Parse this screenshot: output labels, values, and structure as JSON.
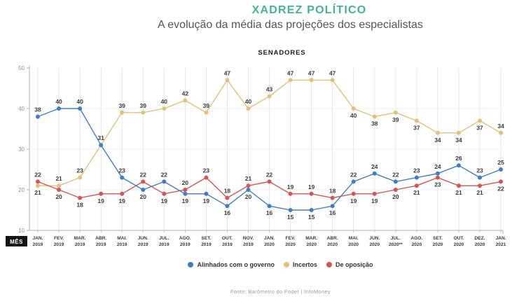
{
  "header": {
    "title": "XADREZ POLÍTICO",
    "subtitle": "A evolução da média das projeções dos especialistas"
  },
  "chart_data": {
    "type": "line",
    "title": "SENADORES",
    "x_axis_label": "MÊS",
    "categories": [
      "JAN. 2019",
      "FEV. 2019",
      "MAR. 2019",
      "ABR. 2019",
      "MAI. 2019",
      "JUN. 2019",
      "JUL. 2019",
      "AGO. 2019",
      "SET. 2019",
      "OUT. 2019",
      "NOV. 2019",
      "JAN. 2020",
      "FEV. 2020",
      "MAR. 2020",
      "ABR. 2020",
      "MAI. 2020",
      "JUN. 2020",
      "JUL. 2020**",
      "AGO. 2020",
      "SET. 2020",
      "OUT. 2020",
      "DEZ. 2020",
      "JAN. 2021"
    ],
    "y_axis": {
      "min": 10,
      "max": 50,
      "ticks": [
        10,
        20,
        30,
        40,
        50
      ]
    },
    "grid": true,
    "legend_position": "bottom",
    "series": [
      {
        "name": "Alinhados com o governo",
        "color": "#3d7ec6",
        "values": [
          38,
          40,
          40,
          31,
          23,
          20,
          22,
          19,
          19,
          16,
          20,
          16,
          15,
          15,
          16,
          22,
          24,
          22,
          23,
          24,
          26,
          23,
          25
        ],
        "label_side": [
          "above",
          "above",
          "above",
          "above",
          "above",
          "below",
          "above",
          "below",
          "below",
          "below",
          "below",
          "below",
          "below",
          "below",
          "below",
          "above",
          "above",
          "above",
          "above",
          "above",
          "above",
          "above",
          "above"
        ]
      },
      {
        "name": "Incertos",
        "color": "#e5c07b",
        "values": [
          21,
          21,
          23,
          31,
          39,
          39,
          40,
          42,
          39,
          47,
          40,
          43,
          47,
          47,
          47,
          40,
          38,
          39,
          37,
          34,
          34,
          37,
          34
        ],
        "label_side": [
          "below",
          "above",
          "above",
          "none",
          "above",
          "above",
          "above",
          "above",
          "above",
          "above",
          "above",
          "above",
          "above",
          "above",
          "above",
          "below",
          "below",
          "below",
          "below",
          "below",
          "below",
          "below",
          "above"
        ]
      },
      {
        "name": "De oposição",
        "color": "#d85450",
        "values": [
          22,
          20,
          18,
          19,
          19,
          22,
          19,
          20,
          23,
          18,
          21,
          22,
          19,
          19,
          18,
          19,
          19,
          20,
          21,
          23,
          21,
          21,
          22
        ],
        "label_side": [
          "above",
          "below",
          "below",
          "below",
          "below",
          "above",
          "below",
          "above",
          "above",
          "above",
          "above",
          "above",
          "above",
          "above",
          "above",
          "below",
          "below",
          "below",
          "below",
          "below",
          "below",
          "below",
          "below"
        ]
      }
    ]
  },
  "footer": {
    "source": "Fonte: Barômetro do Poder | InfoMoney"
  },
  "colors": {
    "accent_green": "#42b491",
    "subtitle_text": "#4f5760",
    "axis": "#b3b3b3",
    "grid_vertical": "#e2e2e2",
    "grid_horizontal": "#ececec",
    "value_label": "#3c3c3c",
    "tick_label": "#8f9396",
    "mes_badge_bg": "#141414",
    "mes_badge_fg": "#ffffff"
  }
}
